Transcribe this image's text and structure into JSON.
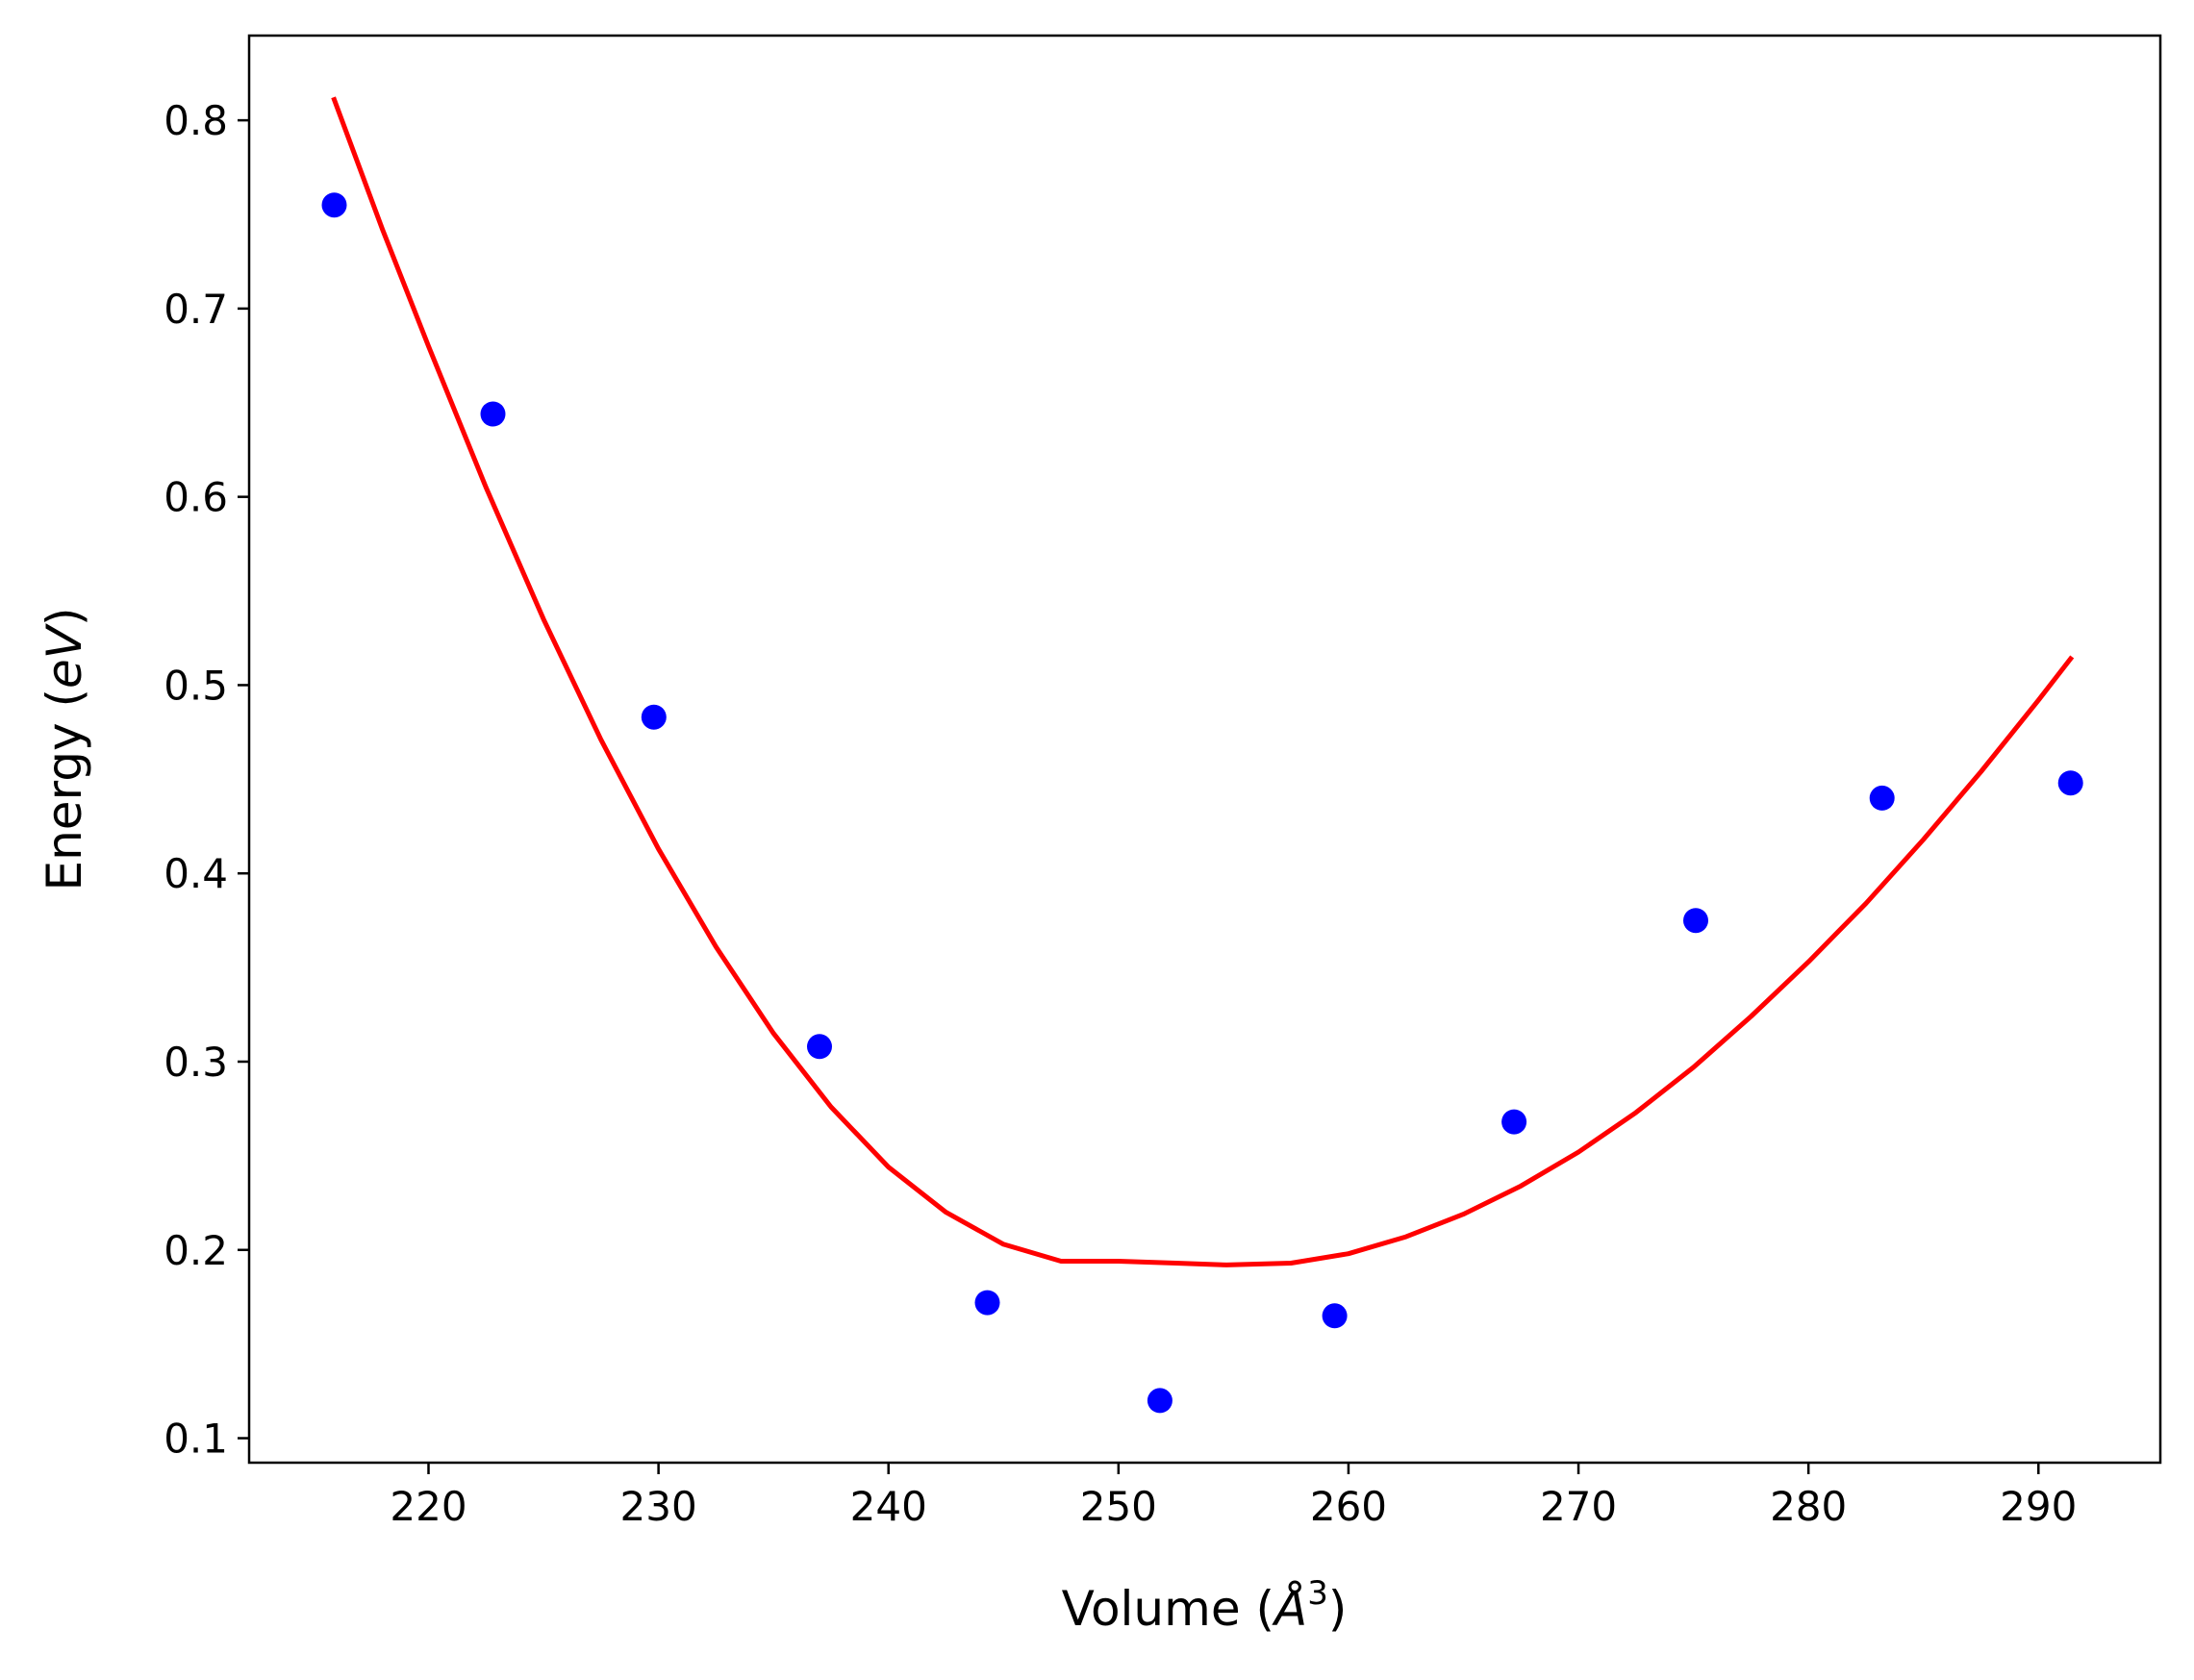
{
  "chart_data": {
    "type": "scatter",
    "title": "",
    "xlabel": "Volume (",
    "xlabel_unit": "Å",
    "xlabel_exp": "3",
    "xlabel_close": ")",
    "ylabel": "Energy (",
    "ylabel_unit": "eV",
    "ylabel_close": ")",
    "xlim": [
      212.2,
      295.3
    ],
    "ylim": [
      0.087,
      0.845
    ],
    "xticks": [
      220,
      230,
      240,
      250,
      260,
      270,
      280,
      290
    ],
    "xtick_labels": [
      "220",
      "230",
      "240",
      "250",
      "260",
      "270",
      "280",
      "290"
    ],
    "yticks": [
      0.1,
      0.2,
      0.3,
      0.4,
      0.5,
      0.6,
      0.7,
      0.8
    ],
    "ytick_labels": [
      "0.1",
      "0.2",
      "0.3",
      "0.4",
      "0.5",
      "0.6",
      "0.7",
      "0.8"
    ],
    "grid": false,
    "series": [
      {
        "kind": "scatter",
        "color": "#0000ff",
        "x": [
          215.9,
          222.8,
          229.8,
          237.0,
          244.3,
          251.8,
          259.4,
          267.2,
          275.1,
          283.2,
          291.4
        ],
        "y": [
          0.755,
          0.644,
          0.483,
          0.308,
          0.172,
          0.12,
          0.165,
          0.268,
          0.375,
          0.44,
          0.448
        ]
      },
      {
        "kind": "line",
        "color": "#ff0000",
        "x": [
          215.9,
          218.0,
          220.0,
          222.5,
          225.0,
          227.5,
          230.0,
          232.5,
          235.0,
          237.5,
          240.0,
          242.5,
          245.0,
          247.5,
          250.0,
          252.5,
          254.7,
          257.5,
          260.0,
          262.5,
          265.0,
          267.5,
          270.0,
          272.5,
          275.0,
          277.5,
          280.0,
          282.5,
          285.0,
          287.5,
          290.0,
          291.4
        ],
        "y": [
          0.811,
          0.742,
          0.68,
          0.605,
          0.535,
          0.471,
          0.413,
          0.361,
          0.315,
          0.276,
          0.244,
          0.22,
          0.203,
          0.194,
          0.194,
          0.193,
          0.192,
          0.193,
          0.198,
          0.207,
          0.219,
          0.234,
          0.252,
          0.273,
          0.297,
          0.324,
          0.353,
          0.384,
          0.418,
          0.454,
          0.492,
          0.514
        ]
      }
    ]
  }
}
